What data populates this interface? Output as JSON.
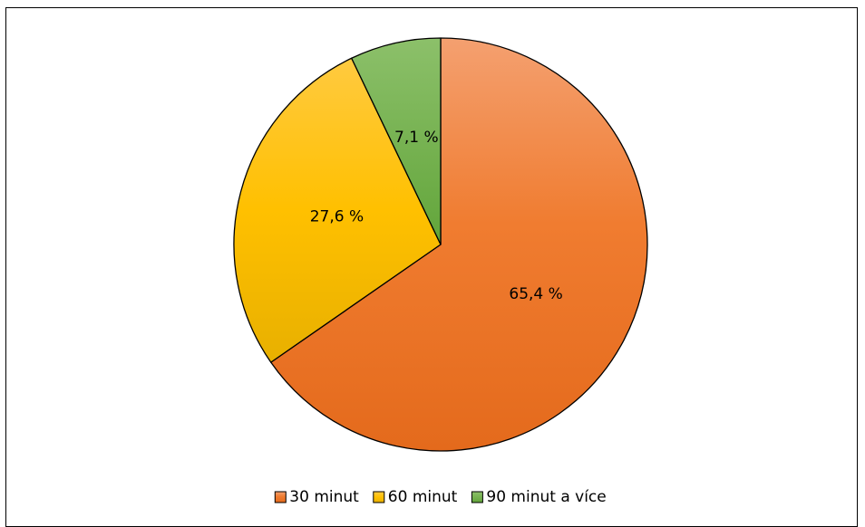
{
  "chart_data": {
    "type": "pie",
    "title": "",
    "categories": [
      "30 minut",
      "60 minut",
      "90 minut a více"
    ],
    "values": [
      65.4,
      27.6,
      7.1
    ],
    "data_labels": [
      "65,4 %",
      "27,6 %",
      "7,1 %"
    ],
    "colors": [
      "#ED7D31",
      "#FFC000",
      "#70AD47"
    ],
    "legend_position": "bottom",
    "start_angle_deg": 0,
    "direction": "clockwise"
  }
}
